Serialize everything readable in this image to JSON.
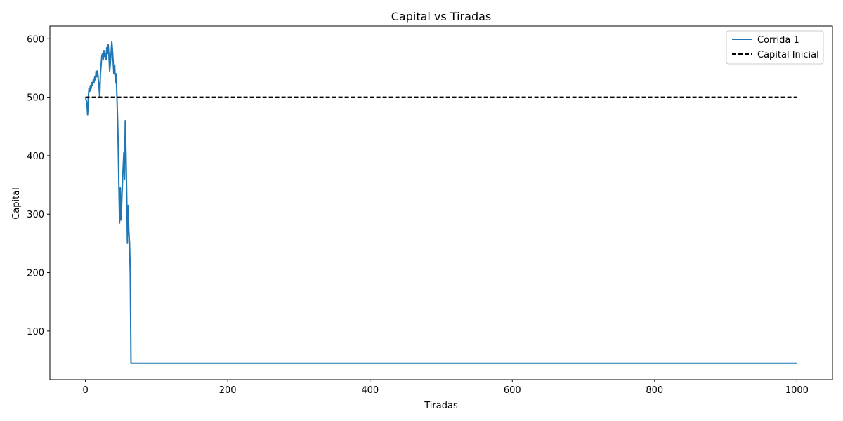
{
  "chart_data": {
    "type": "line",
    "title": "Capital vs Tiradas",
    "xlabel": "Tiradas",
    "ylabel": "Capital",
    "xlim": [
      -50,
      1050
    ],
    "ylim": [
      17,
      622
    ],
    "xticks": [
      0,
      200,
      400,
      600,
      800,
      1000
    ],
    "yticks": [
      100,
      200,
      300,
      400,
      500,
      600
    ],
    "grid": false,
    "legend_position": "top-right",
    "series": [
      {
        "name": "Corrida 1",
        "color": "#1f77b4",
        "style": "solid",
        "x": [
          0,
          2,
          3,
          4,
          5,
          6,
          7,
          8,
          9,
          10,
          11,
          12,
          13,
          14,
          15,
          16,
          17,
          18,
          19,
          20,
          21,
          22,
          23,
          24,
          25,
          26,
          27,
          28,
          29,
          30,
          31,
          32,
          33,
          34,
          35,
          36,
          37,
          38,
          39,
          40,
          41,
          42,
          43,
          44,
          45,
          46,
          47,
          48,
          49,
          50,
          52,
          54,
          55,
          56,
          57,
          58,
          59,
          60,
          61,
          62,
          63,
          64,
          65,
          66,
          67,
          68,
          70,
          1000
        ],
        "y": [
          500,
          490,
          470,
          500,
          515,
          510,
          520,
          515,
          525,
          520,
          530,
          525,
          535,
          530,
          545,
          535,
          545,
          530,
          520,
          500,
          540,
          555,
          570,
          575,
          565,
          580,
          570,
          575,
          565,
          585,
          575,
          590,
          570,
          545,
          560,
          575,
          595,
          580,
          560,
          540,
          555,
          525,
          540,
          510,
          470,
          420,
          350,
          285,
          345,
          290,
          355,
          405,
          360,
          460,
          400,
          330,
          250,
          315,
          270,
          250,
          200,
          45,
          45,
          45,
          45,
          45,
          45,
          45
        ]
      },
      {
        "name": "Capital Inicial",
        "color": "#000000",
        "style": "dashed",
        "x": [
          0,
          1000
        ],
        "y": [
          500,
          500
        ]
      }
    ]
  }
}
